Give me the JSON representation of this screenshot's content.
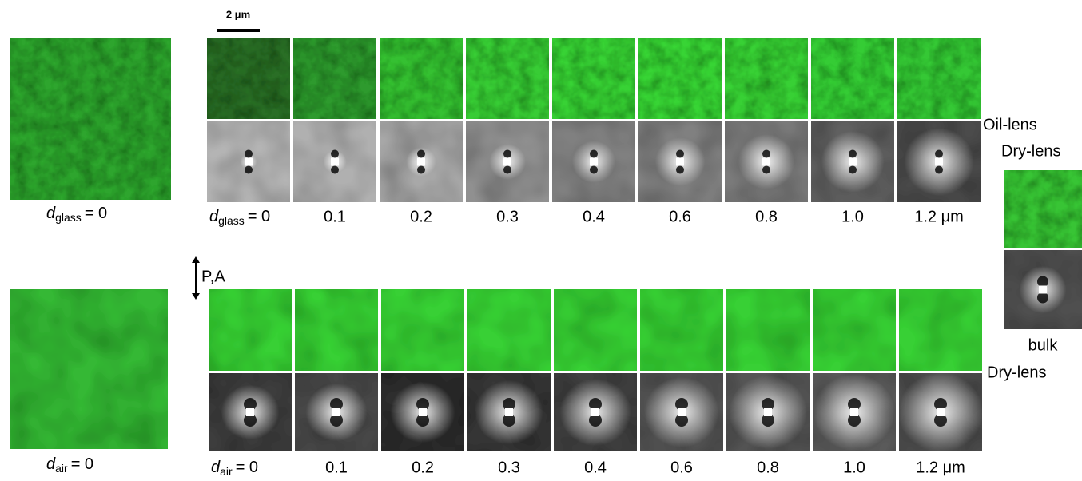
{
  "scale_bar": "2 μm",
  "polarizer": "P,A",
  "left_panels": [
    {
      "symbol": "d",
      "subscript": "glass",
      "suffix": "= 0"
    },
    {
      "symbol": "d",
      "subscript": "air",
      "suffix": "= 0"
    }
  ],
  "rows": [
    {
      "label": "Oil-lens",
      "symbol": "d",
      "subscript": "glass",
      "first_suffix": "= 0",
      "thicknesses": [
        "0.1",
        "0.2",
        "0.3",
        "0.4",
        "0.6",
        "0.8",
        "1.0",
        "1.2 μm"
      ]
    },
    {
      "label": "Dry-lens",
      "symbol": "d",
      "subscript": "air",
      "first_suffix": "= 0",
      "thicknesses": [
        "0.1",
        "0.2",
        "0.3",
        "0.4",
        "0.6",
        "0.8",
        "1.0",
        "1.2 μm"
      ]
    }
  ],
  "inset": {
    "label": "Dry-lens",
    "caption": "bulk"
  }
}
